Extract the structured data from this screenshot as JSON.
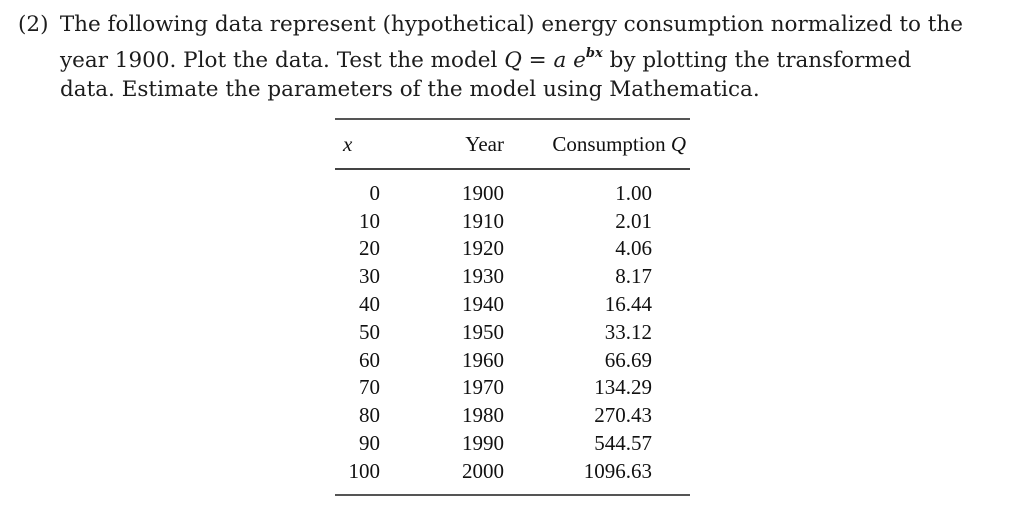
{
  "problem": {
    "number": "(2)",
    "line1": "The following data represent (hypothetical) energy consumption normalized to the",
    "line2_pre": "year 1900.  Plot the data.  Test the model ",
    "math_Q": "Q",
    "math_eq": " = ",
    "math_a": "a",
    "math_e": " e",
    "math_exp": "bx",
    "line2_post": " by plotting the transformed",
    "line3": "data. Estimate the parameters of the model using Mathematica."
  },
  "table": {
    "headers": {
      "x": "x",
      "year": "Year",
      "consumption": "Consumption ",
      "consumption_var": "Q"
    },
    "rows": [
      {
        "x": "0",
        "year": "1900",
        "q": "1.00"
      },
      {
        "x": "10",
        "year": "1910",
        "q": "2.01"
      },
      {
        "x": "20",
        "year": "1920",
        "q": "4.06"
      },
      {
        "x": "30",
        "year": "1930",
        "q": "8.17"
      },
      {
        "x": "40",
        "year": "1940",
        "q": "16.44"
      },
      {
        "x": "50",
        "year": "1950",
        "q": "33.12"
      },
      {
        "x": "60",
        "year": "1960",
        "q": "66.69"
      },
      {
        "x": "70",
        "year": "1970",
        "q": "134.29"
      },
      {
        "x": "80",
        "year": "1980",
        "q": "270.43"
      },
      {
        "x": "90",
        "year": "1990",
        "q": "544.57"
      },
      {
        "x": "100",
        "year": "2000",
        "q": "1096.63"
      }
    ]
  }
}
